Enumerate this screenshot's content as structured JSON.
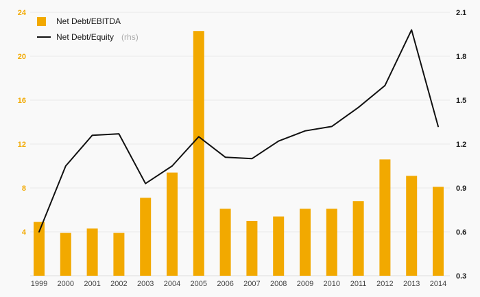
{
  "page": {
    "background": "#f9f9f9"
  },
  "legend": {
    "items": [
      {
        "label": "Net Debt/EBITDA",
        "swatch": "orange-square"
      },
      {
        "label": "Net Debt/Equity",
        "suffix": "(rhs)",
        "swatch": "black-line"
      }
    ]
  },
  "chart_data": {
    "type": "bar",
    "subtype": "bar-line-combo-dual-axis",
    "title": "",
    "categories": [
      "1999",
      "2000",
      "2001",
      "2002",
      "2003",
      "2004",
      "2005",
      "2006",
      "2007",
      "2008",
      "2009",
      "2010",
      "2011",
      "2012",
      "2013",
      "2014"
    ],
    "series": [
      {
        "name": "Net Debt/EBITDA",
        "kind": "bar",
        "axis": "left",
        "color": "#F2A900",
        "values": [
          4.9,
          3.9,
          4.3,
          3.9,
          7.1,
          9.4,
          22.3,
          6.1,
          5.0,
          5.4,
          6.1,
          6.1,
          6.8,
          10.6,
          9.1,
          8.1
        ]
      },
      {
        "name": "Net Debt/Equity (rhs)",
        "kind": "line",
        "axis": "right",
        "color": "#111111",
        "values": [
          0.6,
          1.05,
          1.26,
          1.27,
          0.93,
          1.05,
          1.25,
          1.11,
          1.1,
          1.22,
          1.29,
          1.32,
          1.45,
          1.6,
          1.98,
          1.32
        ]
      }
    ],
    "left_axis": {
      "min": 0,
      "max": 24,
      "ticks": [
        4,
        8,
        12,
        16,
        20,
        24
      ],
      "label_color": "#F2A900"
    },
    "right_axis": {
      "min": 0.3,
      "max": 2.1,
      "ticks": [
        0.3,
        0.6,
        0.9,
        1.2,
        1.5,
        1.8,
        2.1
      ],
      "label_color": "#1a1a1a"
    },
    "x_axis": {
      "label_color": "#444444"
    },
    "grid": true,
    "grid_color": "#e9e9e9",
    "legend_position": "top-left"
  }
}
